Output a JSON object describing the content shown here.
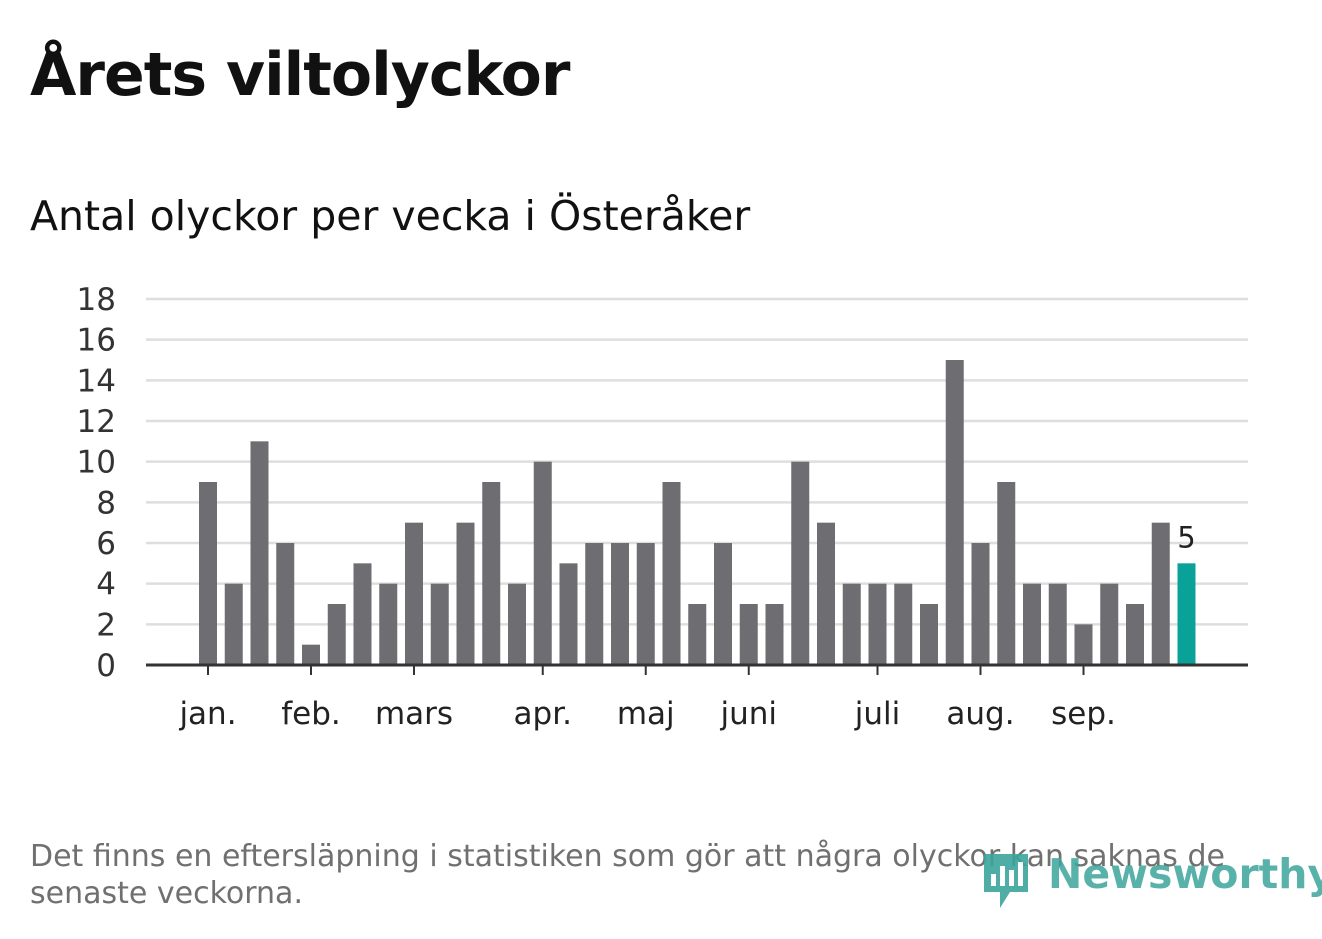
{
  "title": "Årets viltolyckor",
  "chart_data": {
    "type": "bar",
    "title": "Antal olyckor per vecka i Österåker",
    "xlabel": "",
    "ylabel": "",
    "ylim": [
      0,
      18
    ],
    "yticks": [
      "0",
      "2",
      "4",
      "6",
      "8",
      "10",
      "12",
      "14",
      "16",
      "18"
    ],
    "grid": true,
    "values": [
      9,
      4,
      11,
      6,
      1,
      3,
      5,
      4,
      7,
      4,
      7,
      9,
      4,
      10,
      5,
      6,
      6,
      6,
      9,
      3,
      6,
      3,
      3,
      10,
      7,
      4,
      4,
      4,
      3,
      15,
      6,
      9,
      4,
      4,
      2,
      4,
      3,
      7,
      5
    ],
    "month_labels": [
      {
        "label": "jan.",
        "bar_index": 0
      },
      {
        "label": "feb.",
        "bar_index": 4
      },
      {
        "label": "mars",
        "bar_index": 8
      },
      {
        "label": "apr.",
        "bar_index": 13
      },
      {
        "label": "maj",
        "bar_index": 17
      },
      {
        "label": "juni",
        "bar_index": 21
      },
      {
        "label": "juli",
        "bar_index": 26
      },
      {
        "label": "aug.",
        "bar_index": 30
      },
      {
        "label": "sep.",
        "bar_index": 34
      }
    ],
    "highlight_index": 38,
    "highlight_label": "5",
    "colors": {
      "bar": "#6e6d72",
      "highlight": "#0aa198",
      "grid": "#dedede",
      "axis": "#333333"
    }
  },
  "footnote": "Det finns en eftersläpning i statistiken som gör att några olyckor kan saknas de senaste veckorna.",
  "logo": {
    "text": "Newsworthy",
    "icon": "newsworthy-chart-icon"
  }
}
